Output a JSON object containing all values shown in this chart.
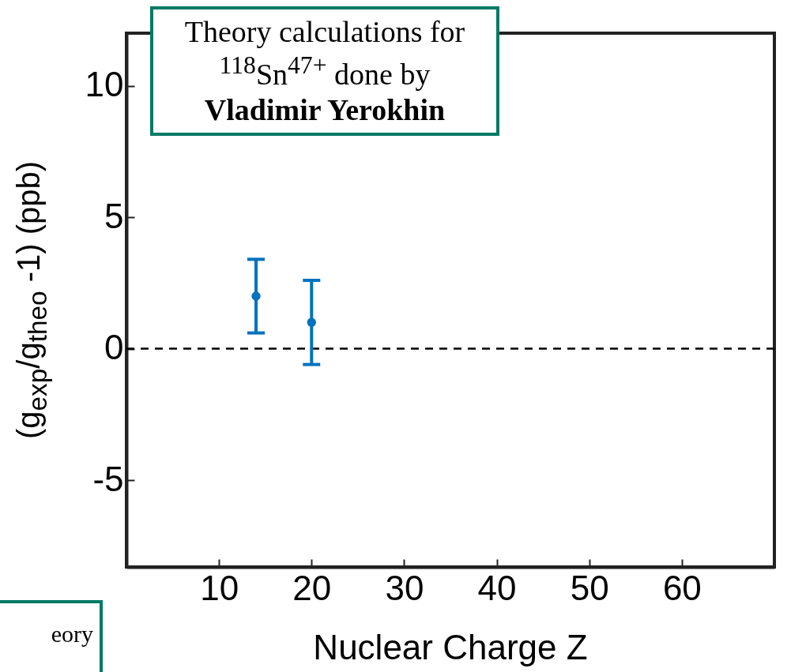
{
  "chart_data": {
    "type": "scatter",
    "xlabel": "Nuclear Charge Z",
    "ylabel": "(g$_{exp}$/g$_{theo}$ -1) (ppb)",
    "x": [
      14,
      20
    ],
    "values": [
      2,
      1
    ],
    "errors": [
      1.4,
      1.6
    ],
    "color": "#0072bd",
    "marker": "circle",
    "xlim": [
      0,
      70
    ],
    "xticks": [
      10,
      20,
      30,
      40,
      50,
      60
    ],
    "ylim": [
      -8.3,
      12
    ],
    "yticks": [
      -5,
      0,
      5,
      10
    ],
    "ref_lines": [
      {
        "axis": "y",
        "value": 0,
        "color": "#000000",
        "line_style": "dashed"
      }
    ],
    "annotations": [
      "Theory calculations for $^{118}$Sn$^{47+}$ done by",
      "Vladimir Yerokhin",
      "eory"
    ]
  }
}
